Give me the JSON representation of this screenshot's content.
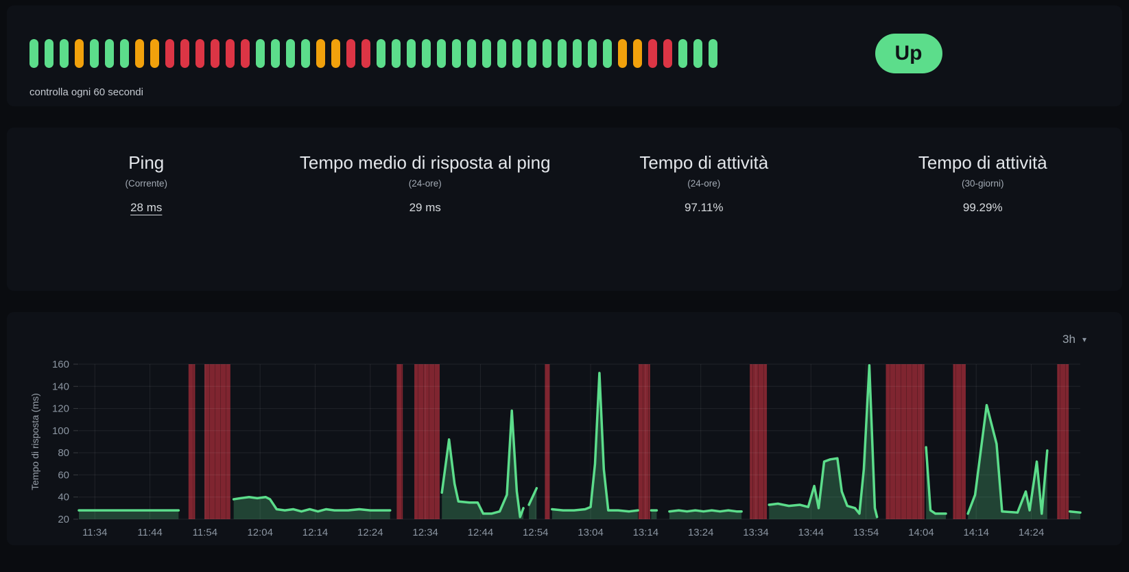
{
  "monitor": {
    "check_interval_text": "controlla ogni 60 secondi",
    "status_label": "Up"
  },
  "heartbeat": {
    "colors": {
      "up": "#5CDD8B",
      "warn": "#F1A10C",
      "down": "#DC3545"
    },
    "pattern": [
      "up",
      "up",
      "up",
      "warn",
      "up",
      "up",
      "up",
      "warn",
      "warn",
      "down",
      "down",
      "down",
      "down",
      "down",
      "down",
      "up",
      "up",
      "up",
      "up",
      "warn",
      "warn",
      "down",
      "down",
      "up",
      "up",
      "up",
      "up",
      "up",
      "up",
      "up",
      "up",
      "up",
      "up",
      "up",
      "up",
      "up",
      "up",
      "up",
      "up",
      "warn",
      "warn",
      "down",
      "down",
      "up",
      "up",
      "up"
    ]
  },
  "stats": [
    {
      "title": "Ping",
      "subtitle": "(Corrente)",
      "value": "28 ms"
    },
    {
      "title": "Tempo medio di risposta al ping",
      "subtitle": "(24-ore)",
      "value": "29 ms"
    },
    {
      "title": "Tempo di attività",
      "subtitle": "(24-ore)",
      "value": "97.11%"
    },
    {
      "title": "Tempo di attività",
      "subtitle": "(30-giorni)",
      "value": "99.29%"
    }
  ],
  "chart": {
    "period_label": "3h",
    "period_caret_icon": "▾"
  },
  "chart_data": {
    "type": "area",
    "title": "",
    "xlabel": "",
    "ylabel": "Tempo di risposta (ms)",
    "ylim": [
      20,
      160
    ],
    "y_ticks": [
      20,
      40,
      60,
      80,
      100,
      120,
      140,
      160
    ],
    "x_tick_labels": [
      "11:34",
      "11:44",
      "11:54",
      "12:04",
      "12:14",
      "12:24",
      "12:34",
      "12:44",
      "12:54",
      "13:04",
      "13:14",
      "13:24",
      "13:34",
      "13:44",
      "13:54",
      "14:04",
      "14:14",
      "14:24"
    ],
    "x_tick_minutes": [
      0,
      10,
      20,
      30,
      40,
      50,
      60,
      70,
      80,
      90,
      100,
      110,
      120,
      130,
      140,
      150,
      160,
      170
    ],
    "x_domain_minutes": [
      -2.9,
      178.9
    ],
    "grid": true,
    "legend": "none",
    "line_color": "#5CDD8B",
    "area_color": "rgba(92,221,139,0.25)",
    "down_color": "rgba(220,53,69,0.55)",
    "down_stripe_color": "rgba(0,0,0,0.22)",
    "series": [
      {
        "name": "Tempo di risposta",
        "unit": "ms",
        "segments": [
          [
            [
              -2.9,
              28
            ],
            [
              3,
              28
            ],
            [
              8,
              28
            ],
            [
              12,
              28
            ],
            [
              15.2,
              28
            ]
          ],
          [
            [
              25.2,
              38
            ],
            [
              26.5,
              39
            ],
            [
              28,
              40
            ],
            [
              29.5,
              39
            ],
            [
              31,
              40
            ],
            [
              31.8,
              38
            ],
            [
              33,
              29
            ],
            [
              34.5,
              28
            ],
            [
              36,
              29
            ],
            [
              37.5,
              27
            ],
            [
              39,
              29
            ],
            [
              40.5,
              27
            ],
            [
              42,
              29
            ],
            [
              43.5,
              28
            ],
            [
              46,
              28
            ],
            [
              48,
              29
            ],
            [
              50,
              28
            ],
            [
              53.6,
              28
            ]
          ],
          [
            [
              63,
              44
            ],
            [
              64.3,
              92
            ],
            [
              65.3,
              52
            ],
            [
              66,
              36
            ],
            [
              68,
              35
            ],
            [
              69.5,
              35
            ],
            [
              70.5,
              25
            ],
            [
              72,
              25
            ],
            [
              73.5,
              27
            ],
            [
              74.8,
              42
            ],
            [
              75.7,
              118
            ],
            [
              76.6,
              45
            ],
            [
              77.2,
              22
            ],
            [
              77.8,
              30
            ]
          ],
          [
            [
              78.8,
              33
            ],
            [
              80.2,
              48
            ]
          ],
          [
            [
              83,
              29
            ],
            [
              85,
              28
            ],
            [
              87,
              28
            ],
            [
              89,
              29
            ],
            [
              90,
              31
            ],
            [
              90.8,
              70
            ],
            [
              91.6,
              152
            ],
            [
              92.4,
              65
            ],
            [
              93.2,
              28
            ],
            [
              95,
              28
            ],
            [
              97,
              27
            ],
            [
              98.6,
              28
            ]
          ],
          [
            [
              101,
              28
            ],
            [
              102,
              28
            ]
          ],
          [
            [
              104.3,
              27
            ],
            [
              106,
              28
            ],
            [
              107.5,
              27
            ],
            [
              109,
              28
            ],
            [
              110.5,
              27
            ],
            [
              112,
              28
            ],
            [
              113.5,
              27
            ],
            [
              115,
              28
            ],
            [
              116.5,
              27
            ],
            [
              117.4,
              27
            ]
          ],
          [
            [
              122.4,
              33
            ],
            [
              124,
              34
            ],
            [
              126,
              32
            ],
            [
              128,
              33
            ],
            [
              129.5,
              31
            ],
            [
              130.6,
              50
            ],
            [
              131.4,
              30
            ],
            [
              132.4,
              72
            ],
            [
              133.5,
              74
            ],
            [
              134.8,
              75
            ],
            [
              135.6,
              45
            ],
            [
              136.6,
              32
            ],
            [
              138,
              30
            ],
            [
              138.8,
              25
            ],
            [
              139.6,
              65
            ],
            [
              140.6,
              159
            ],
            [
              141.6,
              30
            ],
            [
              142,
              22
            ]
          ],
          [
            [
              150.9,
              85
            ],
            [
              151.7,
              28
            ],
            [
              152.6,
              25
            ],
            [
              154.5,
              25
            ]
          ],
          [
            [
              158.5,
              25
            ],
            [
              159.8,
              42
            ],
            [
              161.9,
              123
            ],
            [
              163.7,
              88
            ],
            [
              164.7,
              27
            ],
            [
              167.5,
              26
            ],
            [
              169,
              45
            ],
            [
              169.7,
              28
            ],
            [
              171,
              72
            ],
            [
              171.9,
              25
            ],
            [
              172.9,
              82
            ]
          ],
          [
            [
              177,
              27
            ],
            [
              178.9,
              26
            ]
          ]
        ]
      }
    ],
    "down_bands": [
      [
        17,
        18.2
      ],
      [
        19.9,
        24.6
      ],
      [
        54.8,
        55.9
      ],
      [
        58,
        62.6
      ],
      [
        81.7,
        82.6
      ],
      [
        98.7,
        100.8
      ],
      [
        118.9,
        122
      ],
      [
        143.6,
        150.6
      ],
      [
        155.8,
        158.1
      ],
      [
        174.7,
        176.8
      ]
    ]
  }
}
